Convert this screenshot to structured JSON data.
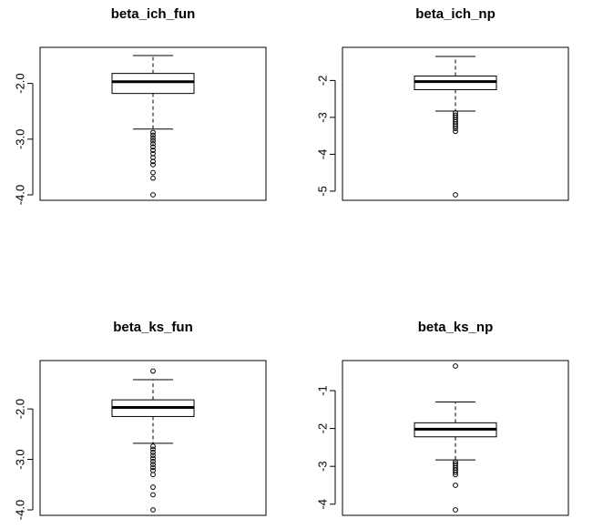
{
  "chart_data": [
    {
      "type": "boxplot",
      "title": "beta_ich_fun",
      "ylim": [
        -4.0,
        -1.45
      ],
      "yticks": [
        -2.0,
        -3.0,
        -4.0
      ],
      "ytick_labels": [
        "-2.0",
        "-3.0",
        "-4.0"
      ],
      "box": {
        "q1": -2.18,
        "median": -1.97,
        "q3": -1.82,
        "whisker_low": -2.82,
        "whisker_high": -1.5
      },
      "outliers": [
        -2.88,
        -2.93,
        -2.98,
        -3.03,
        -3.08,
        -3.14,
        -3.2,
        -3.26,
        -3.33,
        -3.4,
        -3.46,
        -3.6,
        -3.7,
        -4.0
      ]
    },
    {
      "type": "boxplot",
      "title": "beta_ich_np",
      "ylim": [
        -5.1,
        -1.25
      ],
      "yticks": [
        -2,
        -3,
        -4,
        -5
      ],
      "ytick_labels": [
        "-2",
        "-3",
        "-4",
        "-5"
      ],
      "box": {
        "q1": -2.25,
        "median": -2.03,
        "q3": -1.88,
        "whisker_low": -2.83,
        "whisker_high": -1.35
      },
      "outliers": [
        -2.88,
        -2.94,
        -3.0,
        -3.06,
        -3.12,
        -3.18,
        -3.24,
        -3.3,
        -3.38,
        -5.1
      ]
    },
    {
      "type": "boxplot",
      "title": "beta_ks_fun",
      "ylim": [
        -4.0,
        -1.15
      ],
      "yticks": [
        -2.0,
        -3.0,
        -4.0
      ],
      "ytick_labels": [
        "-2.0",
        "-3.0",
        "-4.0"
      ],
      "box": {
        "q1": -2.15,
        "median": -1.97,
        "q3": -1.82,
        "whisker_low": -2.68,
        "whisker_high": -1.42
      },
      "outliers": [
        -1.25,
        -2.74,
        -2.8,
        -2.86,
        -2.92,
        -2.98,
        -3.04,
        -3.1,
        -3.16,
        -3.22,
        -3.3,
        -3.55,
        -3.7,
        -4.0
      ]
    },
    {
      "type": "boxplot",
      "title": "beta_ks_np",
      "ylim": [
        -4.15,
        -0.35
      ],
      "yticks": [
        -1,
        -2,
        -3,
        -4
      ],
      "ytick_labels": [
        "-1",
        "-2",
        "-3",
        "-4"
      ],
      "box": {
        "q1": -2.22,
        "median": -2.02,
        "q3": -1.85,
        "whisker_low": -2.83,
        "whisker_high": -1.3
      },
      "outliers": [
        -0.35,
        -2.88,
        -2.93,
        -2.98,
        -3.04,
        -3.1,
        -3.16,
        -3.22,
        -3.5,
        -4.15
      ]
    }
  ]
}
